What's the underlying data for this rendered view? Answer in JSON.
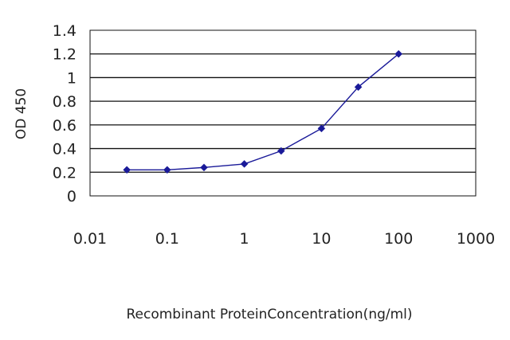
{
  "chart_data": {
    "type": "line",
    "title": "",
    "xlabel": "Recombinant ProteinConcentration(ng/ml)",
    "ylabel": "OD 450",
    "x_scale": "log",
    "xlim": [
      0.01,
      1000
    ],
    "ylim": [
      0,
      1.4
    ],
    "x_tick_labels": [
      "0.01",
      "0.1",
      "1",
      "10",
      "100",
      "1000"
    ],
    "y_tick_labels": [
      "0",
      "0.2",
      "0.4",
      "0.6",
      "0.8",
      "1",
      "1.2",
      "1.4"
    ],
    "grid": "horizontal",
    "legend": "none",
    "series": [
      {
        "color": "#1a1a99",
        "points": [
          {
            "x": 0.03,
            "y": 0.22
          },
          {
            "x": 0.1,
            "y": 0.22
          },
          {
            "x": 0.3,
            "y": 0.24
          },
          {
            "x": 1,
            "y": 0.27
          },
          {
            "x": 3,
            "y": 0.38
          },
          {
            "x": 10,
            "y": 0.57
          },
          {
            "x": 30,
            "y": 0.92
          },
          {
            "x": 100,
            "y": 1.2
          }
        ]
      }
    ]
  }
}
